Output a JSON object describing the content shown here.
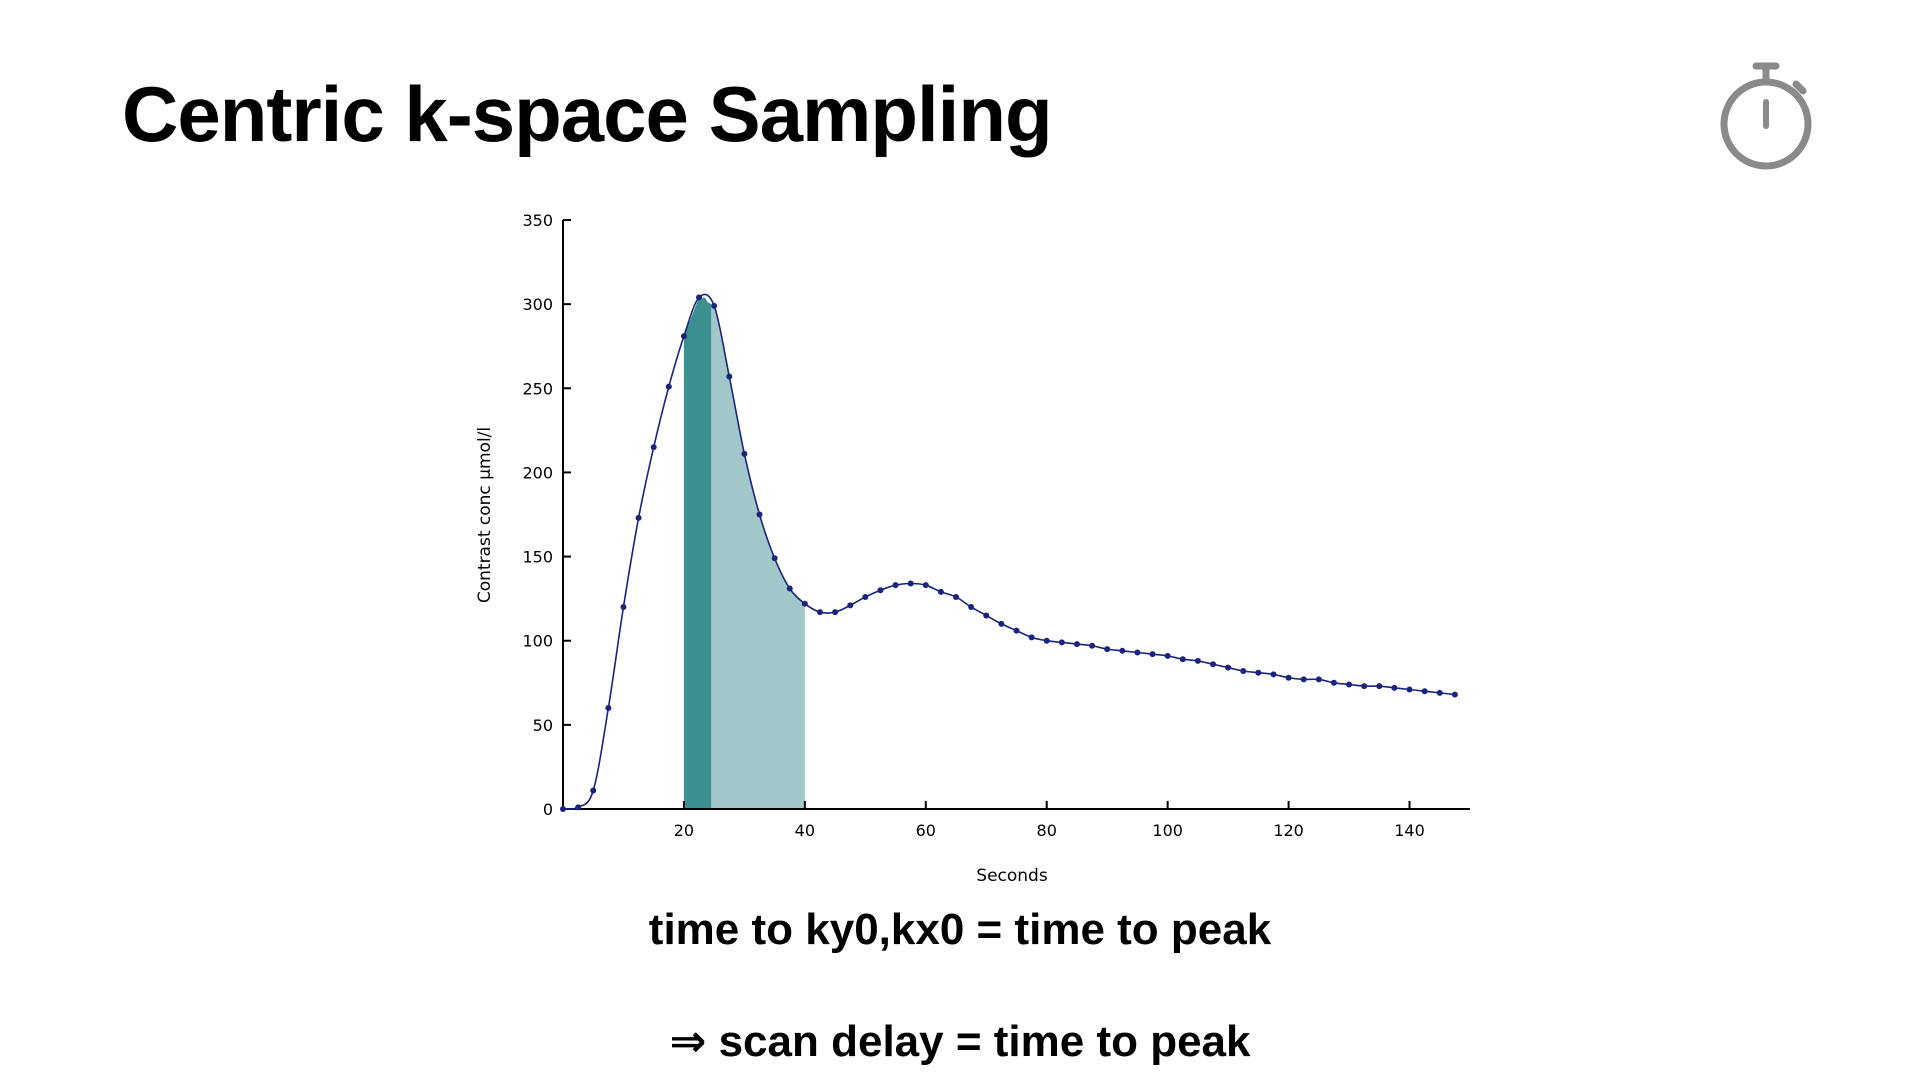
{
  "slide": {
    "title": "Centric k-space Sampling",
    "icon": "stopwatch-icon",
    "caption_1": "time to ky0,kx0 = time to peak",
    "caption_2": "⇒ scan delay = time to peak"
  },
  "colors": {
    "curve": "#1a237e",
    "band_dark": "#3c8f8f",
    "band_light": "#a1c7c8",
    "icon": "#8a8a8a"
  },
  "chart_data": {
    "type": "line",
    "xlabel": "Seconds",
    "ylabel": "Contrast conc  µmol/l",
    "xlim": [
      0,
      150
    ],
    "ylim": [
      0,
      350
    ],
    "x_ticks": [
      20,
      40,
      60,
      80,
      100,
      120,
      140
    ],
    "y_ticks": [
      0,
      50,
      100,
      150,
      200,
      250,
      300,
      350
    ],
    "grid": false,
    "series": [
      {
        "x": [
          0,
          2.5,
          5,
          7.5,
          10,
          12.5,
          15,
          17.5,
          20,
          22.5,
          25,
          27.5,
          30,
          32.5,
          35,
          37.5,
          40,
          42.5,
          45,
          47.5,
          50,
          52.5,
          55,
          57.5,
          60,
          62.5,
          65,
          67.5,
          70,
          72.5,
          75,
          77.5,
          80,
          82.5,
          85,
          87.5,
          90,
          92.5,
          95,
          97.5,
          100,
          102.5,
          105,
          107.5,
          110,
          112.5,
          115,
          117.5,
          120,
          122.5,
          125,
          127.5,
          130,
          132.5,
          135,
          137.5,
          140,
          142.5,
          145,
          147.5
        ],
        "values": [
          0,
          1,
          11,
          60,
          120,
          173,
          215,
          251,
          281,
          304,
          299,
          257,
          211,
          175,
          149,
          131,
          122,
          117,
          117,
          121,
          126,
          130,
          133,
          134,
          133,
          129,
          126,
          120,
          115,
          110,
          106,
          102,
          100,
          99,
          98,
          97,
          95,
          94,
          93,
          92,
          91,
          89,
          88,
          86,
          84,
          82,
          81,
          80,
          78,
          77,
          77,
          75,
          74,
          73,
          73,
          72,
          71,
          70,
          69,
          68
        ]
      }
    ],
    "shaded_regions": [
      {
        "x_start": 20,
        "x_end": 40,
        "shade": "light"
      },
      {
        "x_start": 20,
        "x_end": 24.5,
        "shade": "dark"
      }
    ]
  }
}
